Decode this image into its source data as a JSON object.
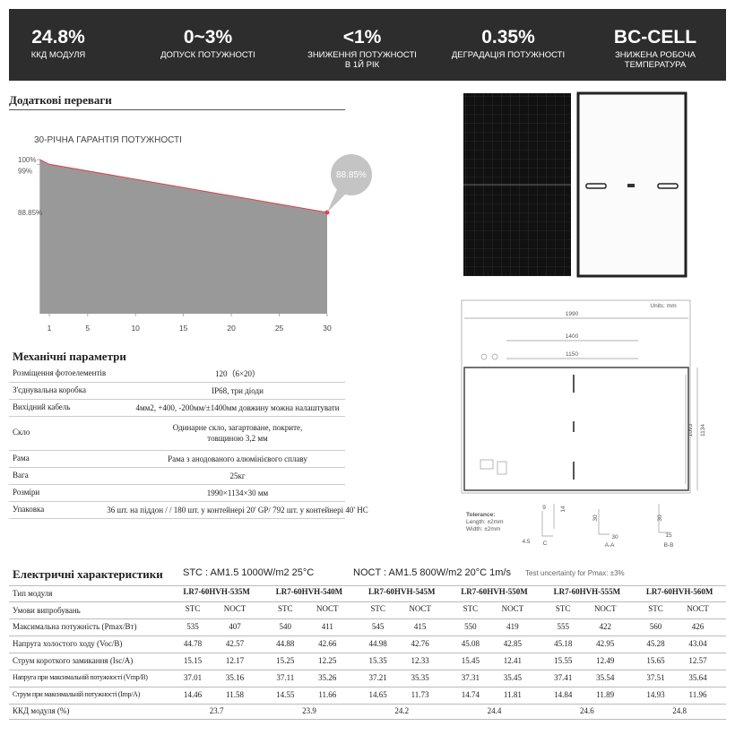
{
  "header": {
    "items": [
      {
        "value": "24.8%",
        "label": "ККД МОДУЛЯ"
      },
      {
        "value": "0~3%",
        "label": "ДОПУСК ПОТУЖНОСТІ"
      },
      {
        "value": "<1%",
        "label": "ЗНИЖЕННЯ ПОТУЖНОСТІ В 1Й РІК"
      },
      {
        "value": "0.35%",
        "label": "ДЕГРАДАЦІЯ ПОТУЖНОСТІ"
      },
      {
        "value": "BC-CELL",
        "label": "ЗНИЖЕНА РОБОЧА ТЕМПЕРАТУРА"
      }
    ]
  },
  "benefits": {
    "title": "Додаткові переваги",
    "chart": {
      "type": "area",
      "title": "30-РІЧНА ГАРАНТІЯ ПОТУЖНОСТІ",
      "x": [
        0,
        1,
        30
      ],
      "values": [
        100,
        99,
        88.85
      ],
      "value_labels": [
        null,
        null,
        "88.85%"
      ],
      "xlim": [
        0,
        30
      ],
      "ylim": [
        67.5,
        100
      ],
      "xticks": [
        1,
        5,
        10,
        15,
        20,
        25,
        30
      ],
      "yticks": [
        {
          "value": 100,
          "label": "100%"
        },
        {
          "value": 99,
          "label": "99%"
        },
        {
          "value": 88.85,
          "label": "88.85%"
        }
      ],
      "color": "#999999",
      "line_color": "#e0404a"
    }
  },
  "diagram": {
    "units": "Units: mm",
    "dims": [
      "1990",
      "1400",
      "1150",
      "1093",
      "1134"
    ],
    "tolerance": [
      "Tolerance:",
      "Length: ±2mm",
      "Width: ±2mm"
    ],
    "section_c": [
      "9",
      "14",
      "4.5",
      "C"
    ],
    "section_a": [
      "30",
      "30",
      "A-A"
    ],
    "section_b": [
      "30",
      "15",
      "B-B"
    ]
  },
  "mechanical": {
    "title": "Механічні параметри",
    "rows": [
      [
        "Розміщення фотоелементів",
        "120（6×20）"
      ],
      [
        "З'єднувальна коробка",
        "IP68, три діоди"
      ],
      [
        "Вихідний кабель",
        "4мм2, +400, -200мм/±1400мм довжину можна налаштувати"
      ],
      [
        "Скло",
        "Одинарне скло, загартоване, покрите, товщиною 3,2 мм"
      ],
      [
        "Рама",
        "Рама з анодованого алюмінієвого сплаву"
      ],
      [
        "Вага",
        "25кг"
      ],
      [
        "Розміри",
        "1990×1134×30 мм"
      ],
      [
        "Упаковка",
        "36 шт. на піддон / / 180 шт. у контейнері 20' GP/ 792 шт. у контейнері 40' HC"
      ]
    ]
  },
  "electrical": {
    "title": "Електричні характеристики",
    "stc": "STC : AM1.5 1000W/m2 25°C",
    "noct": "NOCT : AM1.5 800W/m2 20°C 1m/s",
    "note": "Test uncertainty for Pmax: ±3%",
    "model_label": "Тип модуля",
    "models": [
      "LR7-60HVH-535M",
      "LR7-60HVH-540M",
      "LR7-60HVH-545M",
      "LR7-60HVH-550M",
      "LR7-60HVH-555M",
      "LR7-60HVH-560M"
    ],
    "conditions_label": "Умови випробувань",
    "conditions": [
      "STC",
      "NOCT",
      "STC",
      "NOCT",
      "STC",
      "NOCT",
      "STC",
      "NOCT",
      "STC",
      "NOCT",
      "STC",
      "NOCT"
    ],
    "rows": [
      {
        "label": "Максимальна потужність (Pmax/Вт)",
        "values": [
          "535",
          "407",
          "540",
          "411",
          "545",
          "415",
          "550",
          "419",
          "555",
          "422",
          "560",
          "426"
        ]
      },
      {
        "label": "Напруга холостого ходу (Voc/В)",
        "values": [
          "44.78",
          "42.57",
          "44.88",
          "42.66",
          "44.98",
          "42.76",
          "45.08",
          "42.85",
          "45.18",
          "42.95",
          "45.28",
          "43.04"
        ]
      },
      {
        "label": "Струм короткого замикання (Isc/А)",
        "values": [
          "15.15",
          "12.17",
          "15.25",
          "12.25",
          "15.35",
          "12.33",
          "15.45",
          "12.41",
          "15.55",
          "12.49",
          "15.65",
          "12.57"
        ]
      },
      {
        "label": "Напруга при максимальній потужності (Vmp/В)",
        "values": [
          "37.01",
          "35.16",
          "37.11",
          "35.26",
          "37.21",
          "35.35",
          "37.31",
          "35.45",
          "37.41",
          "35.54",
          "37.51",
          "35.64"
        ]
      },
      {
        "label": "Струм при максимальній потужності (Imp/А)",
        "values": [
          "14.46",
          "11.58",
          "14.55",
          "11.66",
          "14.65",
          "11.73",
          "14.74",
          "11.81",
          "14.84",
          "11.89",
          "14.93",
          "11.96"
        ]
      }
    ],
    "efficiency": {
      "label": "ККД модуля (%)",
      "values": [
        "23.7",
        "23.9",
        "24.2",
        "24.4",
        "24.6",
        "24.8"
      ]
    }
  }
}
